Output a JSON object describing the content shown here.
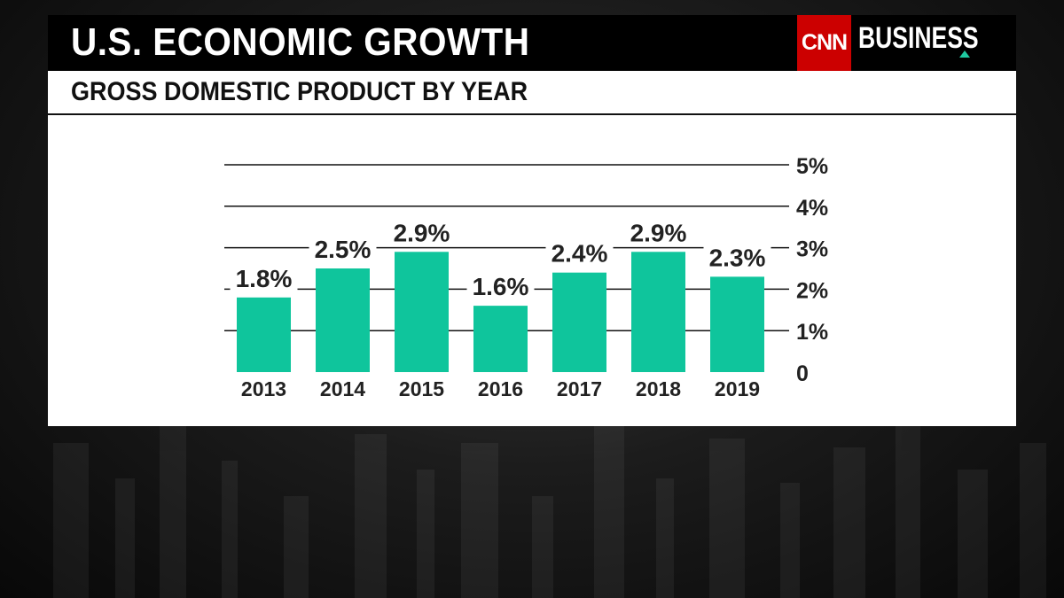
{
  "header": {
    "title": "U.S. ECONOMIC GROWTH",
    "subtitle": "GROSS DOMESTIC PRODUCT BY YEAR"
  },
  "brand": {
    "logo_mark": "CNN",
    "logo_text": "BUSINESS",
    "logo_color": "#cc0000",
    "accent": "#1fc9a0"
  },
  "colors": {
    "bar": "#0fc59c",
    "grid": "#111111",
    "text": "#222222"
  },
  "chart_data": {
    "type": "bar",
    "title": "GROSS DOMESTIC PRODUCT BY YEAR",
    "xlabel": "",
    "ylabel": "",
    "categories": [
      "2013",
      "2014",
      "2015",
      "2016",
      "2017",
      "2018",
      "2019"
    ],
    "values": [
      1.8,
      2.5,
      2.9,
      1.6,
      2.4,
      2.9,
      2.3
    ],
    "data_labels": [
      "1.8%",
      "2.5%",
      "2.9%",
      "1.6%",
      "2.4%",
      "2.9%",
      "2.3%"
    ],
    "ylim": [
      0,
      5
    ],
    "y_ticks": [
      0,
      1,
      2,
      3,
      4,
      5
    ],
    "y_tick_labels": [
      "0",
      "1%",
      "2%",
      "3%",
      "4%",
      "5%"
    ],
    "y_axis_position": "right",
    "grid": true,
    "legend": "none"
  }
}
